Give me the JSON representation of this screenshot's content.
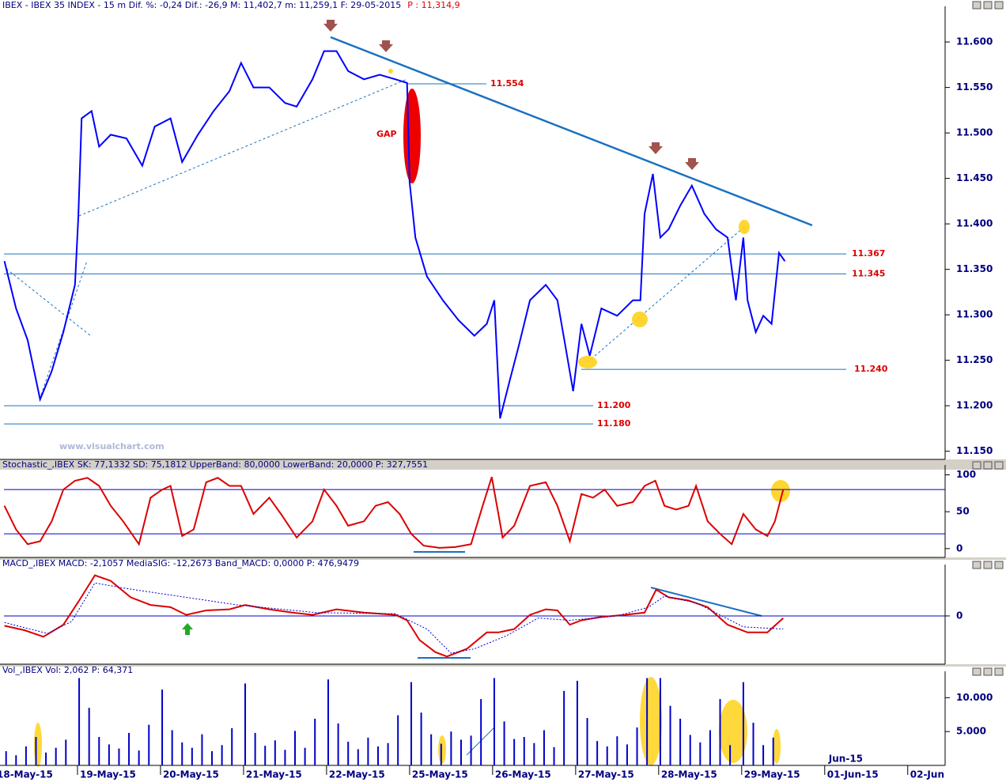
{
  "chart_data": [
    {
      "type": "line",
      "title": "IBEX - IBEX 35 INDEX - 15 m Dif. %: -0,24 Dif.: -26,9 M: 11,402,7 m: 11,259,1 F: 29-05-2015",
      "title_price": "P : 11,314,9",
      "gap_label": "GAP",
      "watermark": "www.visualchart.com",
      "color": "#0000ff",
      "x": [
        0.12,
        0.26,
        0.4,
        0.55,
        0.69,
        0.83,
        0.97,
        1.01,
        1.05,
        1.17,
        1.26,
        1.4,
        1.59,
        1.78,
        1.93,
        2.12,
        2.26,
        2.45,
        2.64,
        2.83,
        2.97,
        3.12,
        3.31,
        3.5,
        3.64,
        3.83,
        3.97,
        4.12,
        4.26,
        4.45,
        4.64,
        4.83,
        4.97,
        5.0,
        5.07,
        5.21,
        5.4,
        5.59,
        5.78,
        5.93,
        6.02,
        6.09,
        6.21,
        6.31,
        6.45,
        6.64,
        6.78,
        6.88,
        6.97,
        7.07,
        7.17,
        7.31,
        7.5,
        7.69,
        7.78,
        7.83,
        7.93,
        8.02,
        8.12,
        8.26,
        8.4,
        8.55,
        8.69,
        8.83,
        8.93,
        9.02,
        9.07,
        9.17,
        9.26,
        9.36,
        9.45,
        9.52
      ],
      "values": [
        11359,
        11307,
        11272,
        11207,
        11238,
        11281,
        11333,
        11407,
        11516,
        11524,
        11485,
        11498,
        11494,
        11464,
        11507,
        11516,
        11468,
        11498,
        11524,
        11546,
        11577,
        11550,
        11550,
        11533,
        11529,
        11559,
        11590,
        11590,
        11568,
        11559,
        11564,
        11559,
        11555,
        11446,
        11385,
        11342,
        11316,
        11294,
        11277,
        11290,
        11316,
        11186,
        11229,
        11264,
        11316,
        11333,
        11316,
        11264,
        11216,
        11290,
        11255,
        11307,
        11299,
        11316,
        11316,
        11411,
        11455,
        11385,
        11394,
        11420,
        11442,
        11411,
        11394,
        11385,
        11316,
        11385,
        11316,
        11281,
        11299,
        11290,
        11368,
        11359
      ],
      "levels": [
        {
          "value": 11554,
          "label": "11.554"
        },
        {
          "value": 11367,
          "label": "11.367"
        },
        {
          "value": 11345,
          "label": "11.345"
        },
        {
          "value": 11240,
          "label": "11.240"
        },
        {
          "value": 11200,
          "label": "11.200"
        },
        {
          "value": 11180,
          "label": "11.180"
        }
      ],
      "xlim": [
        0,
        11.45
      ],
      "ylim": [
        11141,
        11634
      ],
      "yticks": [
        {
          "value": 11600,
          "label": "11.600"
        },
        {
          "value": 11550,
          "label": "11.550"
        },
        {
          "value": 11500,
          "label": "11.500"
        },
        {
          "value": 11450,
          "label": "11.450"
        },
        {
          "value": 11400,
          "label": "11.400"
        },
        {
          "value": 11350,
          "label": "11.350"
        },
        {
          "value": 11300,
          "label": "11.300"
        },
        {
          "value": 11250,
          "label": "11.250"
        },
        {
          "value": 11200,
          "label": "11.200"
        },
        {
          "value": 11150,
          "label": "11.150"
        }
      ],
      "grid": false
    },
    {
      "type": "line",
      "title": "Stochastic_,IBEX SK: 77,1332 SD: 75,1812 UpperBand: 80,0000 LowerBand: 20,0000 P: 327,7551",
      "series": [
        {
          "color": "#dd0000",
          "style": "solid",
          "x": [
            0.12,
            0.26,
            0.4,
            0.55,
            0.69,
            0.83,
            0.97,
            1.12,
            1.26,
            1.4,
            1.55,
            1.74,
            1.88,
            2.02,
            2.12,
            2.26,
            2.4,
            2.55,
            2.69,
            2.83,
            2.97,
            3.12,
            3.31,
            3.45,
            3.64,
            3.83,
            3.97,
            4.12,
            4.26,
            4.45,
            4.59,
            4.74,
            4.88,
            5.02,
            5.17,
            5.36,
            5.55,
            5.74,
            5.88,
            5.99,
            6.12,
            6.26,
            6.45,
            6.64,
            6.78,
            6.93,
            7.07,
            7.21,
            7.35,
            7.5,
            7.69,
            7.83,
            7.96,
            8.07,
            8.21,
            8.36,
            8.45,
            8.59,
            8.74,
            8.88,
            9.02,
            9.17,
            9.31,
            9.4,
            9.5
          ],
          "values": [
            58,
            26,
            6,
            10,
            37,
            80,
            92,
            96,
            85,
            58,
            37,
            6,
            69,
            80,
            85,
            17,
            26,
            90,
            96,
            85,
            85,
            47,
            69,
            47,
            15,
            37,
            80,
            58,
            31,
            37,
            58,
            63,
            47,
            20,
            4,
            1,
            2,
            6,
            58,
            97,
            15,
            31,
            85,
            90,
            58,
            10,
            74,
            69,
            80,
            58,
            63,
            85,
            92,
            58,
            53,
            58,
            85,
            37,
            20,
            6,
            47,
            26,
            17,
            37,
            80
          ]
        }
      ],
      "bands": [
        80,
        20
      ],
      "xlim": [
        0,
        11.45
      ],
      "ylim": [
        -12,
        107
      ],
      "yticks": [
        100,
        50,
        0
      ],
      "grid": false
    },
    {
      "type": "line",
      "title": "MACD_,IBEX MACD: -2,1057 MediaSIG: -12,2673 Band_MACD: 0,0000 P: 476,9479",
      "series": [
        {
          "color": "#dd0000",
          "style": "solid",
          "x": [
            0.12,
            0.36,
            0.59,
            0.83,
            1.02,
            1.21,
            1.4,
            1.64,
            1.88,
            2.12,
            2.31,
            2.55,
            2.83,
            3.02,
            3.31,
            3.59,
            3.83,
            4.12,
            4.45,
            4.83,
            4.97,
            5.12,
            5.31,
            5.45,
            5.69,
            5.93,
            6.07,
            6.26,
            6.45,
            6.64,
            6.78,
            6.93,
            7.07,
            7.31,
            7.59,
            7.83,
            7.97,
            8.12,
            8.36,
            8.59,
            8.83,
            9.07,
            9.31,
            9.5
          ],
          "values": [
            -9,
            -13,
            -19,
            -8,
            14,
            37,
            32,
            17,
            10,
            8,
            1,
            5,
            6,
            10,
            6,
            3,
            1,
            6,
            3,
            1,
            -4,
            -22,
            -33,
            -37,
            -30,
            -15,
            -15,
            -12,
            1,
            6,
            5,
            -8,
            -4,
            -1,
            1,
            3,
            24,
            17,
            14,
            8,
            -8,
            -15,
            -15,
            -2
          ]
        },
        {
          "color": "#0000cc",
          "style": "dotted",
          "x": [
            0.12,
            0.64,
            0.93,
            1.21,
            1.59,
            2.93,
            3.88,
            4.83,
            5.21,
            5.5,
            5.78,
            6.17,
            6.55,
            6.93,
            7.5,
            7.88,
            8.07,
            8.45,
            9.02,
            9.5
          ],
          "values": [
            -6,
            -16,
            -5,
            30,
            25,
            10,
            3,
            2,
            -12,
            -34,
            -30,
            -18,
            -2,
            -4,
            0,
            8,
            18,
            12,
            -10,
            -12
          ]
        }
      ],
      "xlim": [
        0,
        11.45
      ],
      "ylim": [
        -44,
        42.5
      ],
      "yticks": [
        0
      ],
      "grid": true
    },
    {
      "type": "bar",
      "title": "Vol_,IBEX Vol: 2,062 P: 64,371",
      "month_label": "Jun-15",
      "color": "#0000cc",
      "x": [
        0.02,
        0.14,
        0.26,
        0.38,
        0.5,
        0.62,
        0.74,
        0.86,
        1.02,
        1.14,
        1.26,
        1.38,
        1.5,
        1.62,
        1.74,
        1.86,
        2.02,
        2.14,
        2.26,
        2.38,
        2.5,
        2.62,
        2.74,
        2.86,
        3.02,
        3.14,
        3.26,
        3.38,
        3.5,
        3.62,
        3.74,
        3.86,
        4.02,
        4.14,
        4.26,
        4.38,
        4.5,
        4.62,
        4.74,
        4.86,
        5.02,
        5.14,
        5.26,
        5.38,
        5.5,
        5.62,
        5.74,
        5.86,
        6.02,
        6.14,
        6.26,
        6.38,
        6.5,
        6.62,
        6.74,
        6.86,
        7.02,
        7.14,
        7.26,
        7.38,
        7.5,
        7.62,
        7.74,
        7.86,
        8.02,
        8.14,
        8.26,
        8.38,
        8.5,
        8.62,
        8.74,
        8.86,
        9.02,
        9.14,
        9.26,
        9.38
      ],
      "values": [
        3200,
        2100,
        1500,
        2800,
        4200,
        1900,
        2600,
        3800,
        12900,
        8500,
        4200,
        3100,
        2500,
        4800,
        2200,
        6000,
        11200,
        5200,
        3400,
        2600,
        4600,
        2100,
        3000,
        5500,
        12100,
        4800,
        2900,
        3700,
        2300,
        5100,
        2600,
        6900,
        12700,
        6200,
        3500,
        2400,
        4100,
        2800,
        3300,
        7400,
        12300,
        7800,
        4600,
        3200,
        5000,
        3800,
        4400,
        9800,
        12900,
        6500,
        3900,
        4200,
        3300,
        5200,
        2700,
        11000,
        12500,
        7000,
        3600,
        2800,
        4300,
        3100,
        5600,
        12900,
        12900,
        8800,
        6900,
        4500,
        3400,
        5200,
        9800,
        3000,
        12300,
        6300,
        3000,
        4100
      ],
      "xlim": [
        0,
        11.45
      ],
      "xticks": [
        {
          "value": 0,
          "label": "18-May-15"
        },
        {
          "value": 1,
          "label": "19-May-15"
        },
        {
          "value": 2,
          "label": "20-May-15"
        },
        {
          "value": 3,
          "label": "21-May-15"
        },
        {
          "value": 4,
          "label": "22-May-15"
        },
        {
          "value": 5,
          "label": "25-May-15"
        },
        {
          "value": 6,
          "label": "26-May-15"
        },
        {
          "value": 7,
          "label": "27-May-15"
        },
        {
          "value": 8,
          "label": "28-May-15"
        },
        {
          "value": 9,
          "label": "29-May-15"
        },
        {
          "value": 10,
          "label": "01-Jun-15"
        },
        {
          "value": 11,
          "label": "02-Jun"
        }
      ],
      "ylim": [
        0,
        13200
      ],
      "yticks": [
        {
          "value": 10000,
          "label": "10.000"
        },
        {
          "value": 5000,
          "label": "5.000"
        }
      ],
      "grid": false
    }
  ]
}
